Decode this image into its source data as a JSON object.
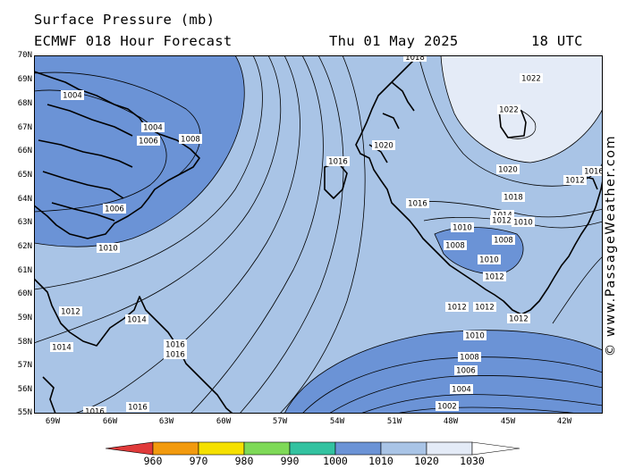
{
  "header": {
    "title": "Surface Pressure (mb)",
    "model": "ECMWF 018 Hour Forecast",
    "date": "Thu 01 May 2025",
    "time": "18 UTC"
  },
  "credit": "© www.PassageWeather.com",
  "map": {
    "lat_labels": [
      "70N",
      "69N",
      "68N",
      "67N",
      "66N",
      "65N",
      "64N",
      "63N",
      "62N",
      "61N",
      "60N",
      "59N",
      "58N",
      "57N",
      "56N",
      "55N"
    ],
    "lon_labels": [
      "69W",
      "66W",
      "63W",
      "60W",
      "57W",
      "54W",
      "51W",
      "48W",
      "45W",
      "42W"
    ],
    "isobar_labels": [
      "1004",
      "1004",
      "1006",
      "1008",
      "1006",
      "1010",
      "1012",
      "1014",
      "1014",
      "1016",
      "1016",
      "1016",
      "1016",
      "1018",
      "1016",
      "1020",
      "1022",
      "1022",
      "1020",
      "1016",
      "1018",
      "1016",
      "1014",
      "1010",
      "1012",
      "1012",
      "1010",
      "1008",
      "1008",
      "1010",
      "1012",
      "1012",
      "1012",
      "1012",
      "1010",
      "1008",
      "1006",
      "1004",
      "1002"
    ],
    "colors": {
      "land_outline": "#000000",
      "below_1010": "#6b93d6",
      "1010_1020": "#a9c4e6",
      "above_1020": "#e4ebf7"
    }
  },
  "legend": {
    "ticks": [
      "960",
      "970",
      "980",
      "990",
      "1000",
      "1010",
      "1020",
      "1030"
    ],
    "colors": [
      "#e03a3a",
      "#f29a0e",
      "#f5e000",
      "#7ed957",
      "#33c2a0",
      "#6b93d6",
      "#a9c4e6",
      "#e4ebf7"
    ]
  }
}
